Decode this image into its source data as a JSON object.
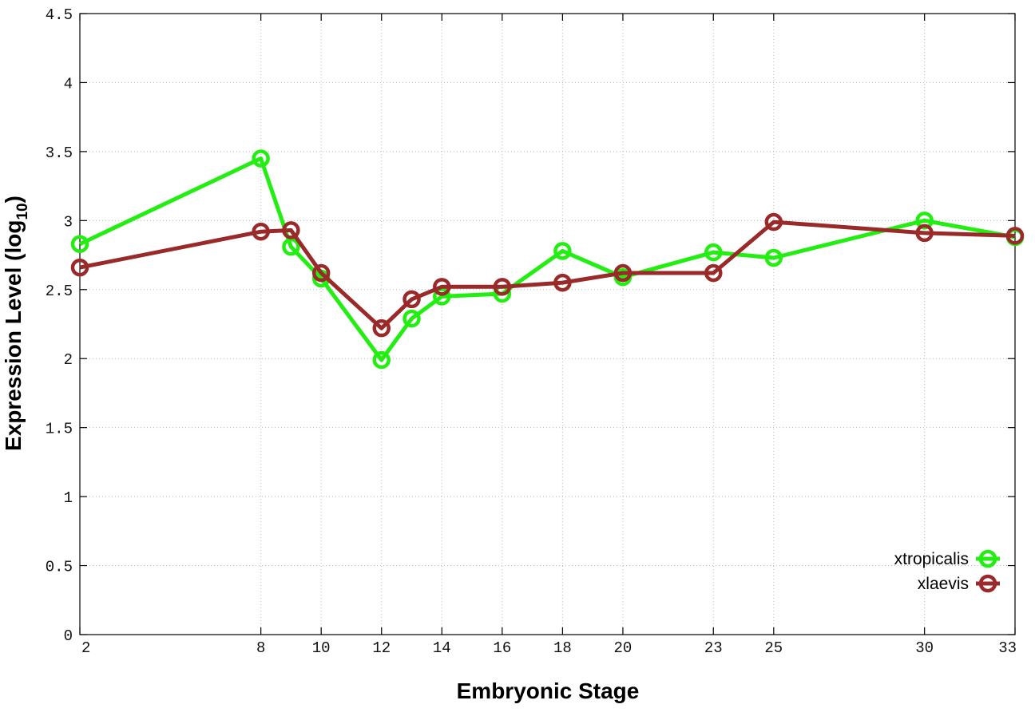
{
  "chart_data": {
    "type": "line",
    "xlabel": "Embryonic Stage",
    "ylabel": "Expression Level (log",
    "ylabel_subscript": "10",
    "ylabel_suffix": ")",
    "xlim": [
      2,
      33
    ],
    "ylim": [
      0,
      4.5
    ],
    "x_ticks": [
      2,
      8,
      10,
      12,
      14,
      16,
      18,
      20,
      23,
      25,
      30,
      33
    ],
    "x_tick_labels": [
      "2",
      "8",
      "10",
      "12",
      "14",
      "16",
      "18",
      "20",
      "23",
      "25",
      "30",
      "33"
    ],
    "y_ticks": [
      0,
      0.5,
      1,
      1.5,
      2,
      2.5,
      3,
      3.5,
      4,
      4.5
    ],
    "y_tick_labels": [
      "0",
      "0.5",
      "1",
      "1.5",
      "2",
      "2.5",
      "3",
      "3.5",
      "4",
      "4.5"
    ],
    "grid": true,
    "legend_position": "bottom-right",
    "series": [
      {
        "name": "xtropicalis",
        "color": "#22ee11",
        "points": [
          [
            2,
            2.83
          ],
          [
            8,
            3.45
          ],
          [
            9,
            2.81
          ],
          [
            10,
            2.58
          ],
          [
            12,
            1.99
          ],
          [
            13,
            2.29
          ],
          [
            14,
            2.45
          ],
          [
            16,
            2.47
          ],
          [
            18,
            2.78
          ],
          [
            20,
            2.59
          ],
          [
            23,
            2.77
          ],
          [
            25,
            2.73
          ],
          [
            30,
            3.0
          ],
          [
            33,
            2.88
          ]
        ]
      },
      {
        "name": "xlaevis",
        "color": "#9a2a2a",
        "points": [
          [
            2,
            2.66
          ],
          [
            8,
            2.92
          ],
          [
            9,
            2.93
          ],
          [
            10,
            2.62
          ],
          [
            12,
            2.22
          ],
          [
            13,
            2.43
          ],
          [
            14,
            2.52
          ],
          [
            16,
            2.52
          ],
          [
            18,
            2.55
          ],
          [
            20,
            2.62
          ],
          [
            23,
            2.62
          ],
          [
            25,
            2.99
          ],
          [
            30,
            2.91
          ],
          [
            33,
            2.89
          ]
        ]
      }
    ]
  }
}
